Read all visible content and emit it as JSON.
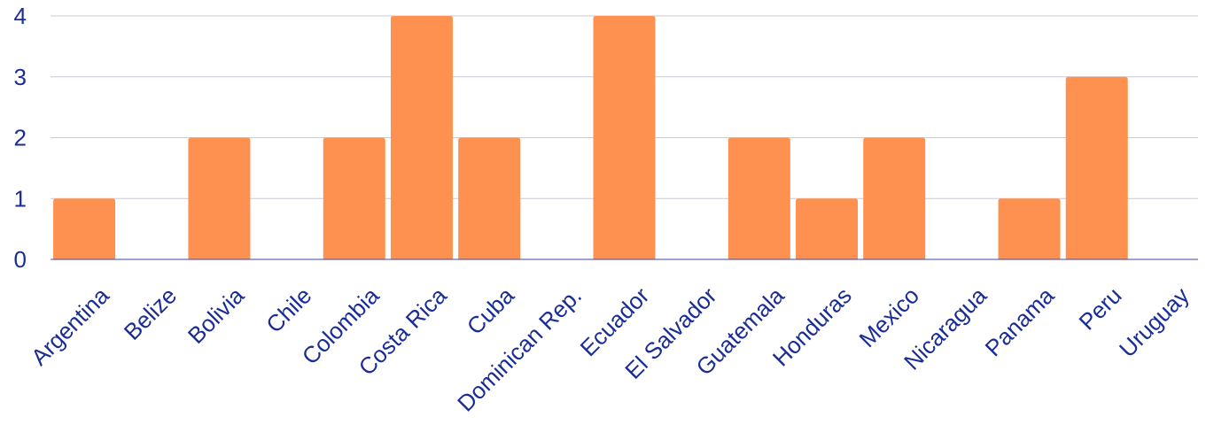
{
  "chart_data": {
    "type": "bar",
    "categories": [
      "Argentina",
      "Belize",
      "Bolivia",
      "Chile",
      "Colombia",
      "Costa Rica",
      "Cuba",
      "Dominican Rep.",
      "Ecuador",
      "El Salvador",
      "Guatemala",
      "Honduras",
      "Mexico",
      "Nicaragua",
      "Panama",
      "Peru",
      "Uruguay"
    ],
    "values": [
      1,
      0,
      2,
      0,
      2,
      4,
      2,
      0,
      4,
      0,
      2,
      1,
      2,
      0,
      1,
      3,
      0
    ],
    "y_ticks": [
      "0",
      "1",
      "2",
      "3",
      "4"
    ],
    "ylim": [
      0,
      4
    ],
    "grid": true,
    "bar_color": "#ff9150",
    "text_color": "#1a2c96",
    "grid_color": "#c8cad6",
    "baseline_color": "#3b4aa0"
  }
}
